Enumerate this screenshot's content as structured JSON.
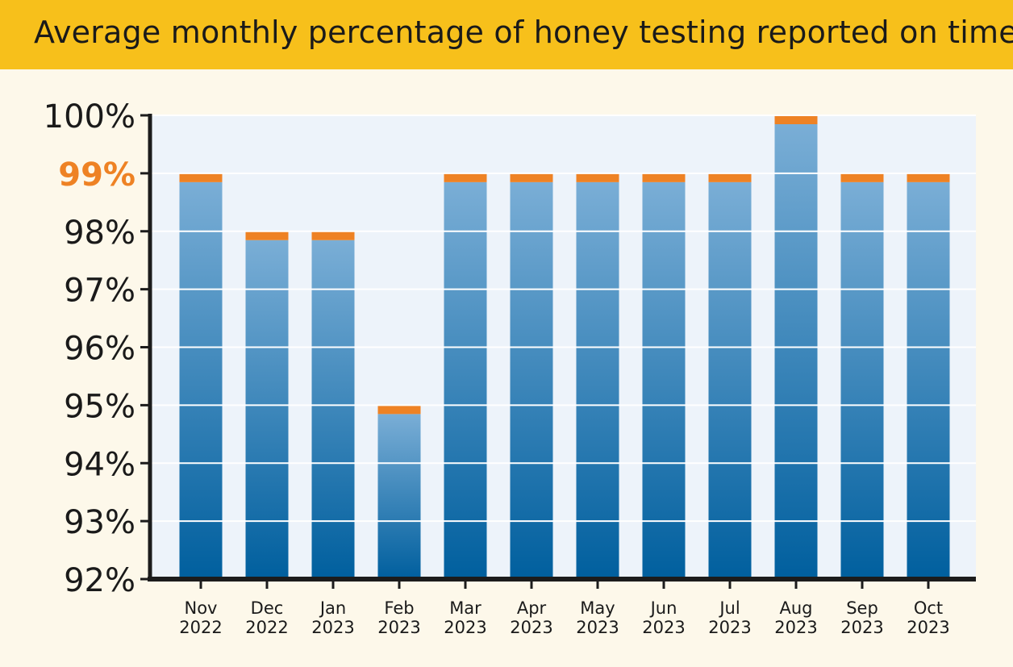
{
  "chart_data": {
    "type": "bar",
    "title": "Average monthly percentage of honey testing reported on time",
    "categories": [
      [
        "Nov",
        "2022"
      ],
      [
        "Dec",
        "2022"
      ],
      [
        "Jan",
        "2023"
      ],
      [
        "Feb",
        "2023"
      ],
      [
        "Mar",
        "2023"
      ],
      [
        "Apr",
        "2023"
      ],
      [
        "May",
        "2023"
      ],
      [
        "Jun",
        "2023"
      ],
      [
        "Jul",
        "2023"
      ],
      [
        "Aug",
        "2023"
      ],
      [
        "Sep",
        "2023"
      ],
      [
        "Oct",
        "2023"
      ]
    ],
    "values": [
      99,
      98,
      98,
      95,
      99,
      99,
      99,
      99,
      99,
      100,
      99,
      99
    ],
    "ylim": [
      92,
      100
    ],
    "yticks": [
      92,
      93,
      94,
      95,
      96,
      97,
      98,
      99,
      100
    ],
    "ytick_labels": [
      "92%",
      "93%",
      "94%",
      "95%",
      "96%",
      "97%",
      "98%",
      "99%",
      "100%"
    ],
    "highlight_tick": 99,
    "grid": true,
    "colors": {
      "header_bg": "#f7c01b",
      "page_bg": "#fdf8ea",
      "plot_bg": "#edf3fa",
      "bar_dark": "#005f9e",
      "bar_light": "#7aaed6",
      "bar_cap": "#ee8224",
      "highlight_label": "#ee8224",
      "axis": "#1c1c1c"
    }
  }
}
